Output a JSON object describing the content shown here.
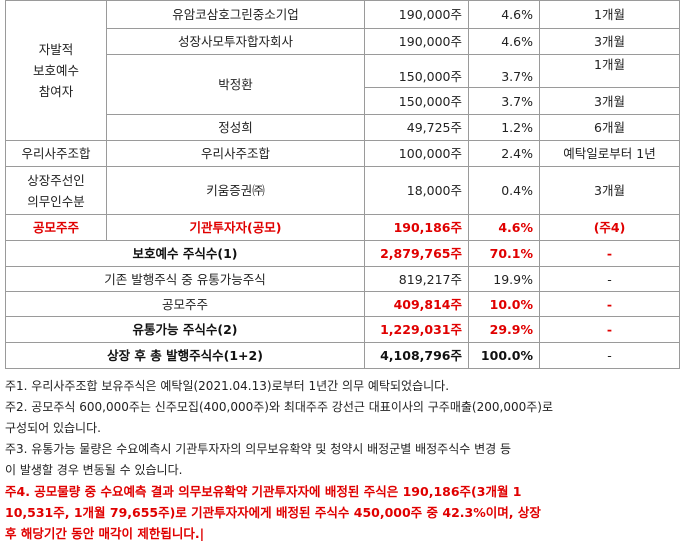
{
  "table": {
    "rows": {
      "r1": {
        "name": "유암코삼호그린중소기업",
        "shares": "190,000주",
        "pct": "4.6%",
        "period": "1개월"
      },
      "r2": {
        "name": "성장사모투자합자회사",
        "shares": "190,000주",
        "pct": "4.6%",
        "period": "3개월"
      },
      "r3": {
        "name": "박정환",
        "shares_a": "150,000주",
        "pct_a": "3.7%",
        "period_a": "1개월",
        "shares_b": "150,000주",
        "pct_b": "3.7%",
        "period_b": "3개월"
      },
      "r4": {
        "name": "정성희",
        "shares": "49,725주",
        "pct": "1.2%",
        "period": "6개월"
      },
      "r5": {
        "category": "우리사주조합",
        "name": "우리사주조합",
        "shares": "100,000주",
        "pct": "2.4%",
        "period": "예탁일로부터 1년"
      },
      "r6": {
        "category_line1": "상장주선인",
        "category_line2": "의무인수분",
        "name": "키움증권㈜",
        "shares": "18,000주",
        "pct": "0.4%",
        "period": "3개월"
      },
      "r7": {
        "category": "공모주주",
        "name": "기관투자자(공모)",
        "shares": "190,186주",
        "pct": "4.6%",
        "period": "(주4)"
      },
      "r8": {
        "label": "보호예수 주식수(1)",
        "shares": "2,879,765주",
        "pct": "70.1%",
        "period": "-"
      },
      "r9": {
        "label": "기존 발행주식 중 유통가능주식",
        "shares": "819,217주",
        "pct": "19.9%",
        "period": "-"
      },
      "r10": {
        "label": "공모주주",
        "shares": "409,814주",
        "pct": "10.0%",
        "period": "-"
      },
      "r11": {
        "label": "유통가능 주식수(2)",
        "shares": "1,229,031주",
        "pct": "29.9%",
        "period": "-"
      },
      "r12": {
        "label": "상장 후 총 발행주식수(1+2)",
        "shares": "4,108,796주",
        "pct": "100.0%",
        "period": "-"
      }
    },
    "category_voluntary": {
      "line1": "자발적",
      "line2": "보호예수",
      "line3": "참여자"
    }
  },
  "notes": {
    "n1": "주1. 우리사주조합 보유주식은 예탁일(2021.04.13)로부터 1년간 의무 예탁되었습니다.",
    "n2a": "주2. 공모주식 600,000주는 신주모집(400,000주)와 최대주주 강선근 대표이사의 구주매출(200,000주)로",
    "n2b": "구성되어 있습니다.",
    "n3a": "주3. 유통가능 물량은 수요예측시 기관투자자의 의무보유확약 및 청약시 배정군별 배정주식수 변경 등",
    "n3b": "이 발생할 경우 변동될 수 있습니다.",
    "n4a": "주4. 공모물량 중 수요예측 결과 의무보유확약 기관투자자에 배정된 주식은 190,186주(3개월 1",
    "n4b": "10,531주, 1개월 79,655주)로 기관투자자에게 배정된 주식수 450,000주 중 42.3%이며, 상장",
    "n4c": "후 해당기간 동안 매각이 제한됩니다.|"
  }
}
